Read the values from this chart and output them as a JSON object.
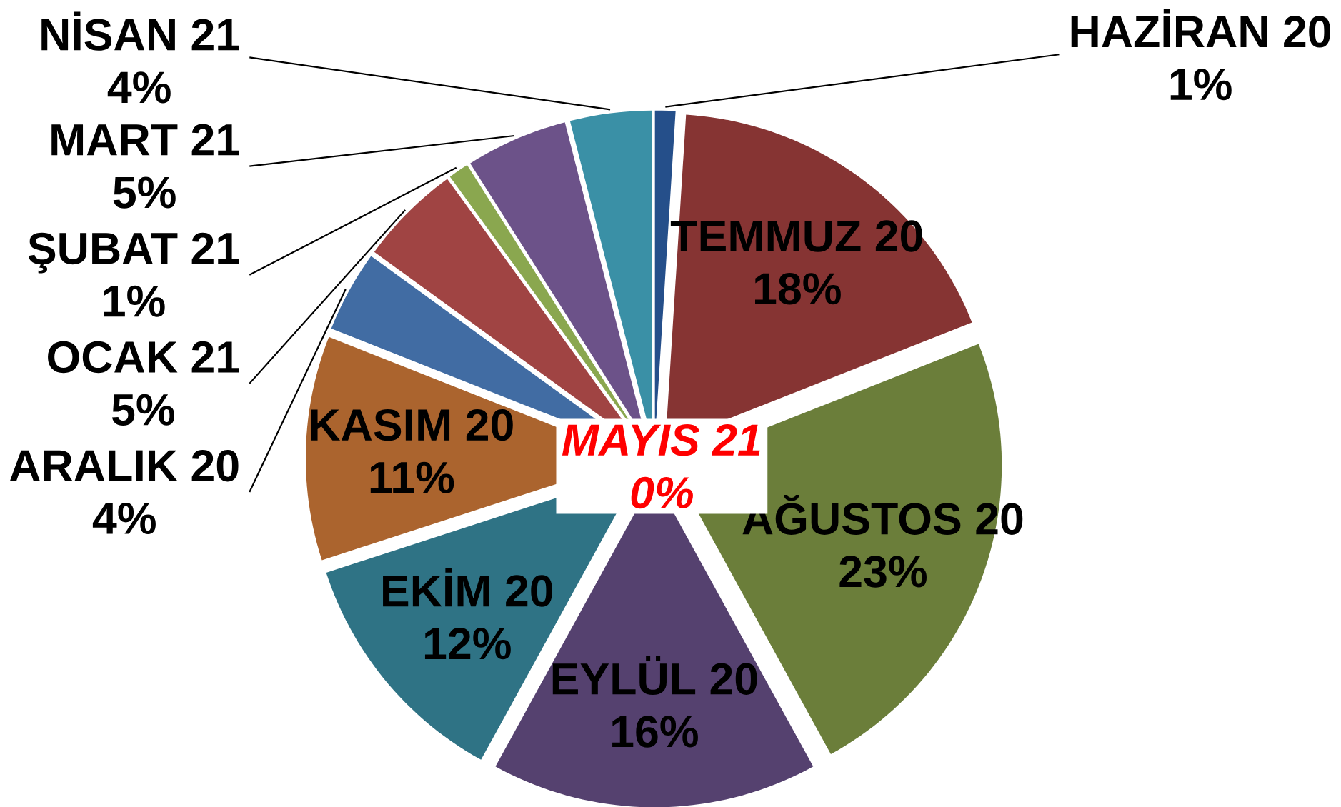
{
  "chart_data": {
    "type": "pie",
    "categories": [
      "HAZİRAN 20",
      "TEMMUZ 20",
      "AĞUSTOS 20",
      "EYLÜL 20",
      "EKİM 20",
      "KASIM 20",
      "ARALIK 20",
      "OCAK 21",
      "ŞUBAT 21",
      "MART 21",
      "NİSAN 21",
      "MAYIS 21"
    ],
    "values": [
      1,
      18,
      23,
      16,
      12,
      11,
      4,
      5,
      1,
      5,
      4,
      0
    ],
    "colors": [
      "#254f8a",
      "#863433",
      "#6b7e3a",
      "#55416f",
      "#2f7385",
      "#ab642e",
      "#416ca3",
      "#a04443",
      "#8aa74f",
      "#6c5289",
      "#3a90a6",
      "#ff0000"
    ],
    "value_labels": [
      "1%",
      "18%",
      "23%",
      "16%",
      "12%",
      "11%",
      "4%",
      "5%",
      "1%",
      "5%",
      "4%",
      "0%"
    ]
  }
}
